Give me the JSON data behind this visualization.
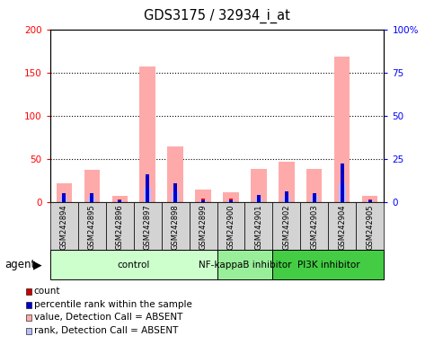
{
  "title": "GDS3175 / 32934_i_at",
  "samples": [
    "GSM242894",
    "GSM242895",
    "GSM242896",
    "GSM242897",
    "GSM242898",
    "GSM242899",
    "GSM242900",
    "GSM242901",
    "GSM242902",
    "GSM242903",
    "GSM242904",
    "GSM242905"
  ],
  "count_values": [
    8,
    8,
    3,
    8,
    8,
    4,
    4,
    8,
    8,
    8,
    8,
    3
  ],
  "rank_values": [
    5,
    5,
    1,
    16,
    11,
    1,
    1,
    4,
    6,
    5,
    22,
    1
  ],
  "absent_value_values": [
    22,
    37,
    7,
    157,
    64,
    14,
    11,
    38,
    47,
    38,
    168,
    7
  ],
  "absent_rank_values": [
    3,
    3,
    1,
    8,
    6,
    1,
    1,
    2,
    3,
    3,
    11,
    1
  ],
  "groups": [
    {
      "label": "control",
      "start": 0,
      "end": 6,
      "color": "#ccffcc"
    },
    {
      "label": "NF-kappaB inhibitor",
      "start": 6,
      "end": 8,
      "color": "#99ee99"
    },
    {
      "label": "PI3K inhibitor",
      "start": 8,
      "end": 12,
      "color": "#44cc44"
    }
  ],
  "ylim_left": [
    0,
    200
  ],
  "ylim_right": [
    0,
    100
  ],
  "yticks_left": [
    0,
    50,
    100,
    150,
    200
  ],
  "yticks_right": [
    0,
    25,
    50,
    75,
    100
  ],
  "ytick_labels_left": [
    "0",
    "50",
    "100",
    "150",
    "200"
  ],
  "ytick_labels_right": [
    "0",
    "25",
    "50",
    "75",
    "100%"
  ],
  "absent_value_color": "#ffaaaa",
  "absent_rank_color": "#bbbbff",
  "count_color": "#cc0000",
  "rank_color": "#0000cc",
  "agent_label": "agent",
  "legend_items": [
    {
      "color": "#cc0000",
      "label": "count",
      "marker": "s"
    },
    {
      "color": "#0000cc",
      "label": "percentile rank within the sample",
      "marker": "s"
    },
    {
      "color": "#ffaaaa",
      "label": "value, Detection Call = ABSENT",
      "marker": "s"
    },
    {
      "color": "#bbbbff",
      "label": "rank, Detection Call = ABSENT",
      "marker": "s"
    }
  ]
}
